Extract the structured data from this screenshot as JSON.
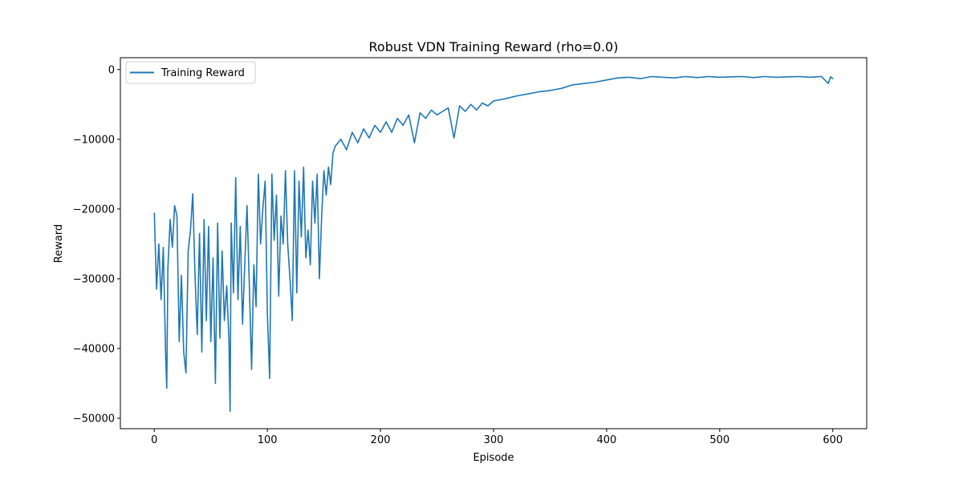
{
  "figure": {
    "title": "Robust VDN Training Reward (rho=0.0)"
  },
  "chart_data": {
    "type": "line",
    "title": "Robust VDN Training Reward (rho=0.0)",
    "xlabel": "Episode",
    "ylabel": "Reward",
    "xlim": [
      -30,
      630
    ],
    "ylim": [
      -51500,
      1700
    ],
    "xticks": [
      0,
      100,
      200,
      300,
      400,
      500,
      600
    ],
    "xtick_labels": [
      "0",
      "100",
      "200",
      "300",
      "400",
      "500",
      "600"
    ],
    "yticks": [
      0,
      -10000,
      -20000,
      -30000,
      -40000,
      -50000
    ],
    "ytick_labels": [
      "0",
      "−10000",
      "−20000",
      "−30000",
      "−40000",
      "−50000"
    ],
    "grid": false,
    "legend_position": "upper-left",
    "series": [
      {
        "name": "Training Reward",
        "color": "#1f77b4",
        "x": [
          0,
          2,
          4,
          6,
          8,
          10,
          11,
          12,
          14,
          16,
          18,
          20,
          22,
          24,
          26,
          28,
          30,
          32,
          34,
          36,
          38,
          40,
          42,
          44,
          46,
          48,
          50,
          52,
          54,
          56,
          58,
          60,
          62,
          64,
          66,
          67,
          68,
          70,
          72,
          74,
          76,
          78,
          80,
          82,
          84,
          86,
          88,
          90,
          92,
          94,
          96,
          98,
          100,
          102,
          104,
          106,
          108,
          110,
          112,
          114,
          116,
          118,
          120,
          122,
          124,
          126,
          128,
          130,
          132,
          134,
          136,
          138,
          140,
          142,
          144,
          146,
          148,
          150,
          152,
          154,
          156,
          158,
          160,
          165,
          170,
          175,
          180,
          185,
          190,
          195,
          200,
          205,
          210,
          215,
          220,
          225,
          230,
          235,
          240,
          245,
          250,
          255,
          260,
          265,
          270,
          275,
          280,
          285,
          290,
          295,
          300,
          310,
          320,
          330,
          340,
          350,
          360,
          370,
          380,
          390,
          400,
          410,
          420,
          430,
          440,
          450,
          460,
          470,
          480,
          490,
          500,
          510,
          520,
          530,
          540,
          550,
          560,
          570,
          580,
          590,
          596,
          598,
          600
        ],
        "values": [
          -20600,
          -31500,
          -25000,
          -33000,
          -25500,
          -41000,
          -45700,
          -28500,
          -21500,
          -25500,
          -19500,
          -21000,
          -39000,
          -29500,
          -40500,
          -43500,
          -26000,
          -23000,
          -17800,
          -29500,
          -38000,
          -23500,
          -40500,
          -21500,
          -36000,
          -22500,
          -39000,
          -27000,
          -45000,
          -22000,
          -38500,
          -26000,
          -36000,
          -31000,
          -38800,
          -49000,
          -22000,
          -32000,
          -15500,
          -33000,
          -22500,
          -36500,
          -28000,
          -19500,
          -30500,
          -43000,
          -28000,
          -34000,
          -15000,
          -25000,
          -20000,
          -16000,
          -35000,
          -44300,
          -15000,
          -24500,
          -18000,
          -32500,
          -21000,
          -25000,
          -14500,
          -25000,
          -30000,
          -36000,
          -14500,
          -32000,
          -16000,
          -24000,
          -14000,
          -27000,
          -23000,
          -28000,
          -16000,
          -22000,
          -15000,
          -30000,
          -21000,
          -14500,
          -18000,
          -14000,
          -16500,
          -12000,
          -11000,
          -10000,
          -11500,
          -9000,
          -10500,
          -8500,
          -9800,
          -8000,
          -9000,
          -7500,
          -9000,
          -7000,
          -8000,
          -6500,
          -10500,
          -6200,
          -7000,
          -5800,
          -6500,
          -6000,
          -5500,
          -9800,
          -5200,
          -6000,
          -5000,
          -5800,
          -4800,
          -5200,
          -4500,
          -4200,
          -3800,
          -3500,
          -3200,
          -3000,
          -2700,
          -2200,
          -2000,
          -1800,
          -1500,
          -1200,
          -1100,
          -1300,
          -1000,
          -1100,
          -1200,
          -1000,
          -1150,
          -1000,
          -1100,
          -1050,
          -1000,
          -1150,
          -1000,
          -1100,
          -1050,
          -1000,
          -1100,
          -1000,
          -2000,
          -1050,
          -1300
        ]
      }
    ]
  }
}
